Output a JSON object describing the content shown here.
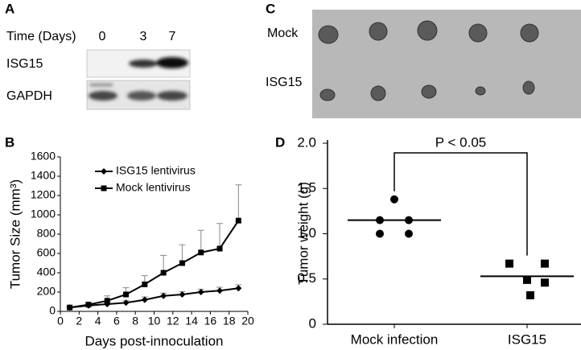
{
  "panel_labels": [
    "A",
    "B",
    "C",
    "D"
  ],
  "blot": {
    "time_label": "Time (Days)",
    "times": [
      "0",
      "3",
      "7"
    ],
    "rows": [
      "ISG15",
      "GAPDH"
    ]
  },
  "photo": {
    "rows": [
      "Mock",
      "ISG15"
    ]
  },
  "chart_data": [
    {
      "type": "line",
      "xlabel": "Days post-innoculation",
      "ylabel": "Tumor Size (mm³)",
      "x": [
        1,
        3,
        5,
        7,
        9,
        11,
        13,
        15,
        17,
        19
      ],
      "series": [
        {
          "name": "ISG15 lentivirus",
          "color": "#000000",
          "marker": "diamond",
          "values": [
            40,
            60,
            75,
            90,
            120,
            160,
            175,
            200,
            215,
            240
          ],
          "errors": [
            5,
            10,
            15,
            20,
            30,
            30,
            30,
            30,
            35,
            35
          ]
        },
        {
          "name": "Mock lentivirus",
          "color": "#000000",
          "marker": "square",
          "values": [
            40,
            70,
            110,
            175,
            280,
            400,
            500,
            610,
            650,
            940
          ],
          "errors": [
            10,
            20,
            50,
            70,
            90,
            180,
            190,
            230,
            260,
            370
          ]
        }
      ],
      "xlim": [
        0,
        20
      ],
      "xticks": [
        0,
        2,
        4,
        6,
        8,
        10,
        12,
        14,
        16,
        18,
        20
      ],
      "ylim": [
        0,
        1600
      ],
      "yticks": [
        0,
        200,
        400,
        600,
        800,
        1000,
        1200,
        1400,
        1600
      ],
      "grid": false,
      "legend": "top-left"
    },
    {
      "type": "dot",
      "ylabel": "Tumor weight (g)",
      "annotation": "P < 0.05",
      "categories": [
        "Mock infection",
        "ISG15"
      ],
      "markers": [
        "circle",
        "square"
      ],
      "values": [
        [
          1.38,
          1.15,
          1.15,
          1.0,
          1.0
        ],
        [
          0.67,
          0.67,
          0.49,
          0.46,
          0.32
        ]
      ],
      "means": [
        1.15,
        0.53
      ],
      "ylim": [
        0,
        2
      ],
      "yticks": [
        0,
        {
          "value": 0.5,
          "label": "0.5"
        },
        {
          "value": 1,
          "label": "1.0"
        },
        {
          "value": 1.5,
          "label": "1.5"
        },
        {
          "value": 2,
          "label": "2.0"
        }
      ],
      "grid": false
    }
  ]
}
